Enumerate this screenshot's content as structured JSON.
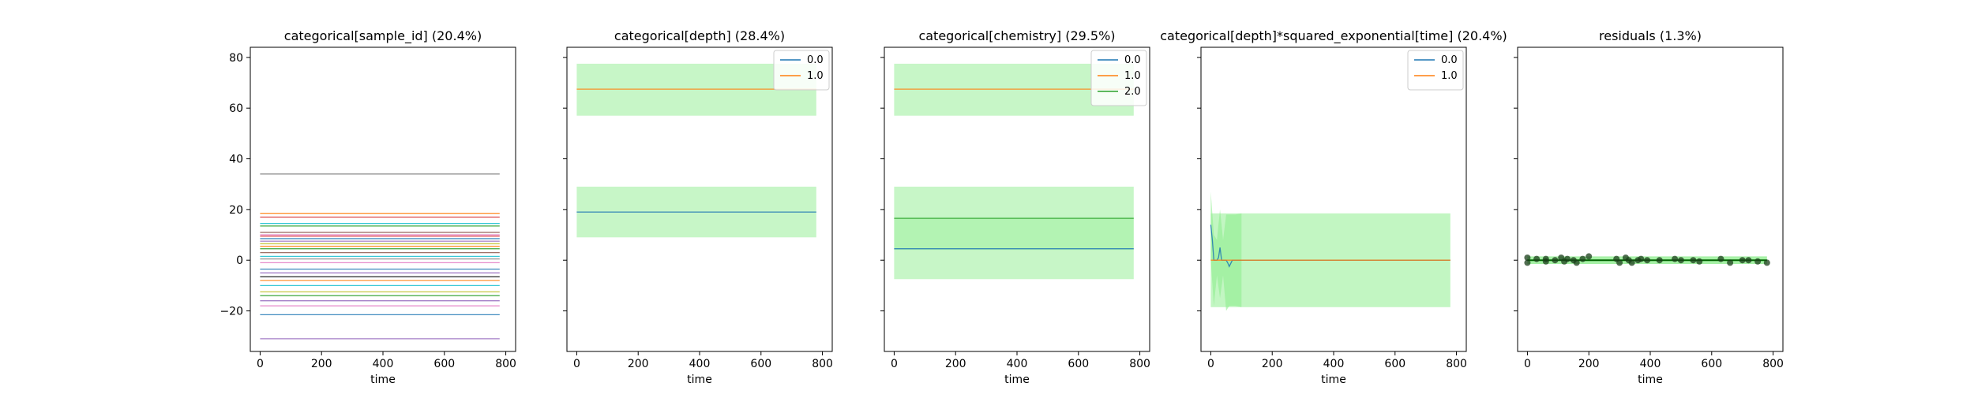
{
  "chart_data": [
    {
      "type": "line",
      "title": "categorical[sample_id] (20.4%)",
      "xlabel": "time",
      "ylabel": "",
      "xlim": [
        -32,
        832
      ],
      "ylim": [
        -36,
        84
      ],
      "xticks": [
        0,
        200,
        400,
        600,
        800
      ],
      "xtick_labels": [
        "0",
        "200",
        "400",
        "600",
        "800"
      ],
      "yticks": [
        -20,
        0,
        20,
        40,
        60,
        80
      ],
      "ytick_labels": [
        "−20",
        "0",
        "20",
        "40",
        "60",
        "80"
      ],
      "show_ytick_labels": true,
      "grid": false,
      "legend": null,
      "series": [
        {
          "x": [
            0,
            780
          ],
          "y": [
            34,
            34
          ],
          "color": "#7f7f7f"
        },
        {
          "x": [
            0,
            780
          ],
          "y": [
            18.5,
            18.5
          ],
          "color": "#ff7f0e"
        },
        {
          "x": [
            0,
            780
          ],
          "y": [
            17,
            17
          ],
          "color": "#d62728"
        },
        {
          "x": [
            0,
            780
          ],
          "y": [
            14.5,
            14.5
          ],
          "color": "#17becf"
        },
        {
          "x": [
            0,
            780
          ],
          "y": [
            13.5,
            13.5
          ],
          "color": "#2ca02c"
        },
        {
          "x": [
            0,
            780
          ],
          "y": [
            11,
            11
          ],
          "color": "#8c564b"
        },
        {
          "x": [
            0,
            780
          ],
          "y": [
            10,
            10
          ],
          "color": "#e377c2"
        },
        {
          "x": [
            0,
            780
          ],
          "y": [
            9.5,
            9.5
          ],
          "color": "#d62728"
        },
        {
          "x": [
            0,
            780
          ],
          "y": [
            8.5,
            8.5
          ],
          "color": "#1f77b4"
        },
        {
          "x": [
            0,
            780
          ],
          "y": [
            7.5,
            7.5
          ],
          "color": "#9467bd"
        },
        {
          "x": [
            0,
            780
          ],
          "y": [
            6.5,
            6.5
          ],
          "color": "#bcbd22"
        },
        {
          "x": [
            0,
            780
          ],
          "y": [
            5.5,
            5.5
          ],
          "color": "#ff7f0e"
        },
        {
          "x": [
            0,
            780
          ],
          "y": [
            4.5,
            4.5
          ],
          "color": "#2ca02c"
        },
        {
          "x": [
            0,
            780
          ],
          "y": [
            3,
            3
          ],
          "color": "#8c564b"
        },
        {
          "x": [
            0,
            780
          ],
          "y": [
            1.5,
            1.5
          ],
          "color": "#17becf"
        },
        {
          "x": [
            0,
            780
          ],
          "y": [
            0.5,
            0.5
          ],
          "color": "#7f7f7f"
        },
        {
          "x": [
            0,
            780
          ],
          "y": [
            -1,
            -1
          ],
          "color": "#e377c2"
        },
        {
          "x": [
            0,
            780
          ],
          "y": [
            -3.5,
            -3.5
          ],
          "color": "#1f77b4"
        },
        {
          "x": [
            0,
            780
          ],
          "y": [
            -5,
            -5
          ],
          "color": "#9467bd"
        },
        {
          "x": [
            0,
            780
          ],
          "y": [
            -6.5,
            -6.5
          ],
          "color": "#000000"
        },
        {
          "x": [
            0,
            780
          ],
          "y": [
            -8,
            -8
          ],
          "color": "#ff7f0e"
        },
        {
          "x": [
            0,
            780
          ],
          "y": [
            -10,
            -10
          ],
          "color": "#17becf"
        },
        {
          "x": [
            0,
            780
          ],
          "y": [
            -12.5,
            -12.5
          ],
          "color": "#bcbd22"
        },
        {
          "x": [
            0,
            780
          ],
          "y": [
            -14,
            -14
          ],
          "color": "#2ca02c"
        },
        {
          "x": [
            0,
            780
          ],
          "y": [
            -16,
            -16
          ],
          "color": "#9467bd"
        },
        {
          "x": [
            0,
            780
          ],
          "y": [
            -18,
            -18
          ],
          "color": "#e377c2"
        },
        {
          "x": [
            0,
            780
          ],
          "y": [
            -21.5,
            -21.5
          ],
          "color": "#1f77b4"
        },
        {
          "x": [
            0,
            780
          ],
          "y": [
            -31,
            -31
          ],
          "color": "#9467bd"
        }
      ]
    },
    {
      "type": "line",
      "title": "categorical[depth] (28.4%)",
      "xlabel": "time",
      "ylabel": "",
      "xlim": [
        -32,
        832
      ],
      "ylim": [
        -36,
        84
      ],
      "xticks": [
        0,
        200,
        400,
        600,
        800
      ],
      "xtick_labels": [
        "0",
        "200",
        "400",
        "600",
        "800"
      ],
      "yticks": [
        -20,
        0,
        20,
        40,
        60,
        80
      ],
      "show_ytick_labels": false,
      "grid": false,
      "legend": "top-right",
      "bands": [
        {
          "x": [
            0,
            780
          ],
          "lower": [
            57,
            57
          ],
          "upper": [
            77.5,
            77.5
          ],
          "color": "#90ee90",
          "opacity": 0.5
        },
        {
          "x": [
            0,
            780
          ],
          "lower": [
            9,
            9
          ],
          "upper": [
            29,
            29
          ],
          "color": "#90ee90",
          "opacity": 0.5
        }
      ],
      "series": [
        {
          "name": "0.0",
          "x": [
            0,
            780
          ],
          "y": [
            19,
            19
          ],
          "color": "#1f77b4"
        },
        {
          "name": "1.0",
          "x": [
            0,
            780
          ],
          "y": [
            67.5,
            67.5
          ],
          "color": "#ff7f0e"
        }
      ]
    },
    {
      "type": "line",
      "title": "categorical[chemistry] (29.5%)",
      "xlabel": "time",
      "ylabel": "",
      "xlim": [
        -32,
        832
      ],
      "ylim": [
        -36,
        84
      ],
      "xticks": [
        0,
        200,
        400,
        600,
        800
      ],
      "xtick_labels": [
        "0",
        "200",
        "400",
        "600",
        "800"
      ],
      "yticks": [
        -20,
        0,
        20,
        40,
        60,
        80
      ],
      "show_ytick_labels": false,
      "grid": false,
      "legend": "top-right",
      "bands": [
        {
          "x": [
            0,
            780
          ],
          "lower": [
            57,
            57
          ],
          "upper": [
            77.5,
            77.5
          ],
          "color": "#90ee90",
          "opacity": 0.5
        },
        {
          "x": [
            0,
            780
          ],
          "lower": [
            -7.5,
            -7.5
          ],
          "upper": [
            29,
            29
          ],
          "color": "#90ee90",
          "opacity": 0.5
        },
        {
          "x": [
            0,
            780
          ],
          "lower": [
            4,
            4
          ],
          "upper": [
            17,
            17
          ],
          "color": "#90ee90",
          "opacity": 0.35
        }
      ],
      "series": [
        {
          "name": "0.0",
          "x": [
            0,
            780
          ],
          "y": [
            4.5,
            4.5
          ],
          "color": "#1f77b4"
        },
        {
          "name": "1.0",
          "x": [
            0,
            780
          ],
          "y": [
            67.5,
            67.5
          ],
          "color": "#ff7f0e"
        },
        {
          "name": "2.0",
          "x": [
            0,
            780
          ],
          "y": [
            16.5,
            16.5
          ],
          "color": "#2ca02c"
        }
      ]
    },
    {
      "type": "line",
      "title": "categorical[depth]*squared_exponential[time] (20.4%)",
      "xlabel": "time",
      "ylabel": "",
      "xlim": [
        -32,
        832
      ],
      "ylim": [
        -36,
        84
      ],
      "xticks": [
        0,
        200,
        400,
        600,
        800
      ],
      "xtick_labels": [
        "0",
        "200",
        "400",
        "600",
        "800"
      ],
      "yticks": [
        -20,
        0,
        20,
        40,
        60,
        80
      ],
      "show_ytick_labels": false,
      "grid": false,
      "legend": "top-right",
      "bands": [
        {
          "x": [
            0,
            780
          ],
          "lower": [
            -18.5,
            -18.5
          ],
          "upper": [
            18.5,
            18.5
          ],
          "color": "#90ee90",
          "opacity": 0.55
        },
        {
          "x": [
            0,
            10,
            20,
            30,
            40,
            50,
            60,
            80,
            100
          ],
          "lower": [
            0,
            -18,
            -6,
            -15,
            -6,
            -20,
            -18,
            -18,
            -18.5
          ],
          "upper": [
            27,
            10,
            8,
            20,
            8,
            18,
            18,
            18,
            18.5
          ],
          "color": "#90ee90",
          "opacity": 0.6
        }
      ],
      "series": [
        {
          "name": "0.0",
          "x": [
            0,
            5,
            10,
            15,
            20,
            25,
            30,
            35,
            40,
            45,
            50,
            55,
            60,
            70,
            780
          ],
          "y": [
            14,
            8,
            0,
            0,
            0,
            1,
            5,
            0,
            0,
            0,
            0,
            -1,
            -2.5,
            0,
            0
          ],
          "color": "#1f77b4"
        },
        {
          "name": "1.0",
          "x": [
            0,
            20,
            40,
            780
          ],
          "y": [
            0,
            0,
            0,
            0
          ],
          "color": "#ff7f0e"
        }
      ]
    },
    {
      "type": "scatter",
      "title": "residuals (1.3%)",
      "xlabel": "time",
      "ylabel": "",
      "xlim": [
        -32,
        832
      ],
      "ylim": [
        -36,
        84
      ],
      "xticks": [
        0,
        200,
        400,
        600,
        800
      ],
      "xtick_labels": [
        "0",
        "200",
        "400",
        "600",
        "800"
      ],
      "yticks": [
        -20,
        0,
        20,
        40,
        60,
        80
      ],
      "show_ytick_labels": false,
      "grid": false,
      "legend": null,
      "bands": [
        {
          "x": [
            0,
            780
          ],
          "lower": [
            -1.5,
            -1.5
          ],
          "upper": [
            1.5,
            1.5
          ],
          "color": "#90ee90",
          "opacity": 0.8
        }
      ],
      "series": [
        {
          "x": [
            0,
            780
          ],
          "y": [
            0,
            0
          ],
          "color": "#006400",
          "role": "line"
        }
      ],
      "points": {
        "color": "#1a3d1a",
        "x": [
          0,
          0,
          30,
          60,
          60,
          90,
          110,
          120,
          130,
          150,
          160,
          180,
          200,
          290,
          300,
          320,
          330,
          340,
          360,
          370,
          390,
          430,
          480,
          500,
          540,
          560,
          630,
          660,
          700,
          720,
          750,
          780
        ],
        "y": [
          1,
          -1,
          0.5,
          0.5,
          -0.5,
          0,
          1,
          -0.5,
          0.5,
          0,
          -1,
          0.5,
          1.5,
          0.5,
          -1,
          1,
          0,
          -1,
          0,
          0.5,
          0,
          0,
          0.5,
          0,
          0,
          -0.5,
          0.5,
          -1,
          0,
          0,
          -0.5,
          -1
        ]
      }
    }
  ]
}
